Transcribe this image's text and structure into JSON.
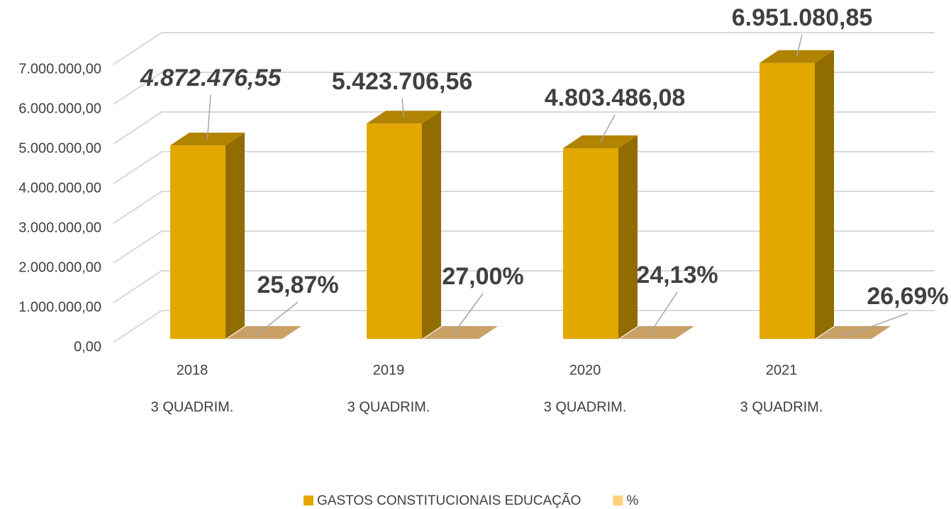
{
  "chart_data": {
    "type": "bar3d",
    "categories": [
      "2018",
      "2019",
      "2020",
      "2021"
    ],
    "category_sublabels": [
      "3 QUADRIM.",
      "3 QUADRIM.",
      "3 QUADRIM.",
      "3 QUADRIM."
    ],
    "series": [
      {
        "name": "GASTOS CONSTITUCIONAIS EDUCAÇÃO",
        "color": "#e2a800",
        "values": [
          4872476.55,
          5423706.56,
          4803486.08,
          6951080.85
        ],
        "value_labels": [
          "4.872.476,55",
          "5.423.706,56",
          "4.803.486,08",
          "6.951.080,85"
        ]
      },
      {
        "name": "%",
        "color": "#ffd07f",
        "values": [
          25.87,
          27.0,
          24.13,
          26.69
        ],
        "value_labels": [
          "25,87%",
          "27,00%",
          "24,13%",
          "26,69%"
        ]
      }
    ],
    "ylim": [
      0,
      7000000
    ],
    "yticks": [
      {
        "value": 0,
        "label": "0,00"
      },
      {
        "value": 1000000,
        "label": "1.000.000,00"
      },
      {
        "value": 2000000,
        "label": "2.000.000,00"
      },
      {
        "value": 3000000,
        "label": "3.000.000,00"
      },
      {
        "value": 4000000,
        "label": "4.000.000,00"
      },
      {
        "value": 5000000,
        "label": "5.000.000,00"
      },
      {
        "value": 6000000,
        "label": "6.000.000,00"
      },
      {
        "value": 7000000,
        "label": "7.000.000,00"
      }
    ],
    "grid": true,
    "legend": "bottom"
  }
}
